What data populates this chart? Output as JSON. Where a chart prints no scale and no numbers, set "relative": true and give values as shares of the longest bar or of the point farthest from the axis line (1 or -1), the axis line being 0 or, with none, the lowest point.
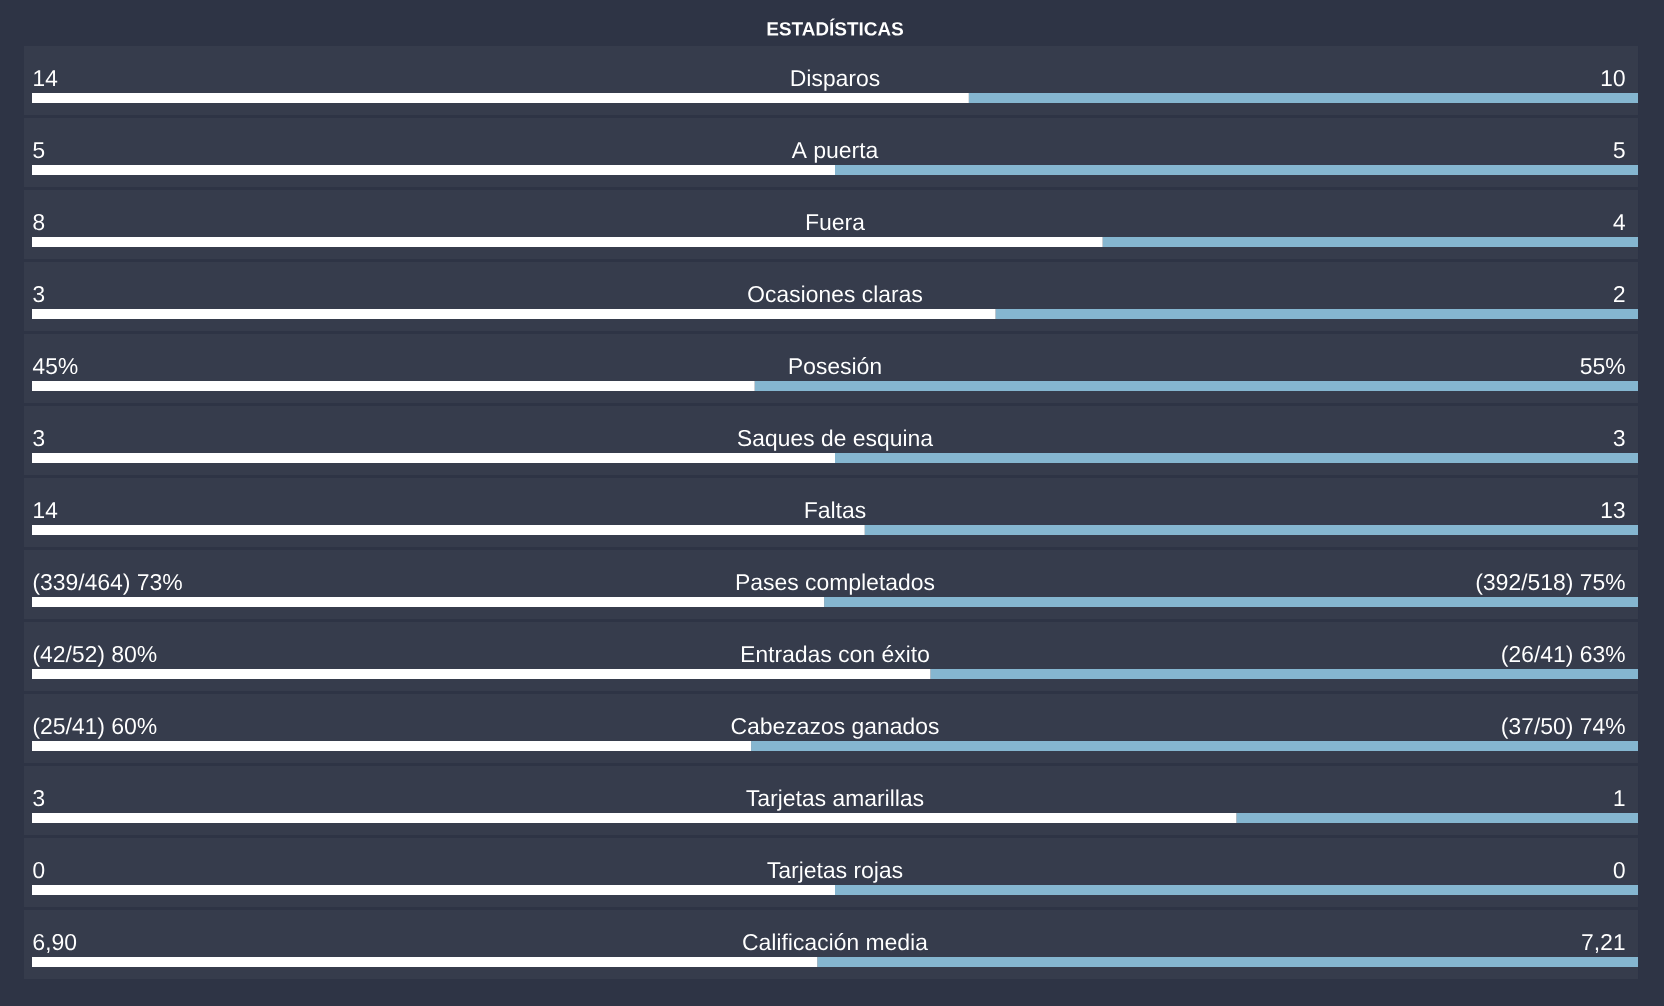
{
  "chart_data": [
    {
      "type": "bar",
      "orientation": "horizontal",
      "stacked": true,
      "title": "ESTADÍSTICAS",
      "categories": [
        "Disparos"
      ],
      "series": [
        {
          "color": "#ffffff",
          "values": [
            14
          ],
          "value_labels": [
            "14"
          ]
        },
        {
          "color": "#85b6d0",
          "values": [
            10
          ],
          "value_labels": [
            "10"
          ]
        }
      ]
    },
    {
      "type": "bar",
      "orientation": "horizontal",
      "stacked": true,
      "categories": [
        "A puerta"
      ],
      "series": [
        {
          "color": "#ffffff",
          "values": [
            5
          ],
          "value_labels": [
            "5"
          ]
        },
        {
          "color": "#85b6d0",
          "values": [
            5
          ],
          "value_labels": [
            "5"
          ]
        }
      ]
    },
    {
      "type": "bar",
      "orientation": "horizontal",
      "stacked": true,
      "categories": [
        "Fuera"
      ],
      "series": [
        {
          "color": "#ffffff",
          "values": [
            8
          ],
          "value_labels": [
            "8"
          ]
        },
        {
          "color": "#85b6d0",
          "values": [
            4
          ],
          "value_labels": [
            "4"
          ]
        }
      ]
    },
    {
      "type": "bar",
      "orientation": "horizontal",
      "stacked": true,
      "categories": [
        "Ocasiones claras"
      ],
      "series": [
        {
          "color": "#ffffff",
          "values": [
            3
          ],
          "value_labels": [
            "3"
          ]
        },
        {
          "color": "#85b6d0",
          "values": [
            2
          ],
          "value_labels": [
            "2"
          ]
        }
      ]
    },
    {
      "type": "bar",
      "orientation": "horizontal",
      "stacked": true,
      "categories": [
        "Posesión"
      ],
      "series": [
        {
          "color": "#ffffff",
          "values": [
            45
          ],
          "value_labels": [
            "45%"
          ]
        },
        {
          "color": "#85b6d0",
          "values": [
            55
          ],
          "value_labels": [
            "55%"
          ]
        }
      ]
    },
    {
      "type": "bar",
      "orientation": "horizontal",
      "stacked": true,
      "categories": [
        "Saques de esquina"
      ],
      "series": [
        {
          "color": "#ffffff",
          "values": [
            3
          ],
          "value_labels": [
            "3"
          ]
        },
        {
          "color": "#85b6d0",
          "values": [
            3
          ],
          "value_labels": [
            "3"
          ]
        }
      ]
    },
    {
      "type": "bar",
      "orientation": "horizontal",
      "stacked": true,
      "categories": [
        "Faltas"
      ],
      "series": [
        {
          "color": "#ffffff",
          "values": [
            14
          ],
          "value_labels": [
            "14"
          ]
        },
        {
          "color": "#85b6d0",
          "values": [
            13
          ],
          "value_labels": [
            "13"
          ]
        }
      ]
    },
    {
      "type": "bar",
      "orientation": "horizontal",
      "stacked": true,
      "categories": [
        "Pases completados"
      ],
      "series": [
        {
          "color": "#ffffff",
          "values": [
            73
          ],
          "value_labels": [
            "(339/464) 73%"
          ]
        },
        {
          "color": "#85b6d0",
          "values": [
            75
          ],
          "value_labels": [
            "(392/518) 75%"
          ]
        }
      ]
    },
    {
      "type": "bar",
      "orientation": "horizontal",
      "stacked": true,
      "categories": [
        "Entradas con éxito"
      ],
      "series": [
        {
          "color": "#ffffff",
          "values": [
            80
          ],
          "value_labels": [
            "(42/52) 80%"
          ]
        },
        {
          "color": "#85b6d0",
          "values": [
            63
          ],
          "value_labels": [
            "(26/41) 63%"
          ]
        }
      ]
    },
    {
      "type": "bar",
      "orientation": "horizontal",
      "stacked": true,
      "categories": [
        "Cabezazos ganados"
      ],
      "series": [
        {
          "color": "#ffffff",
          "values": [
            60
          ],
          "value_labels": [
            "(25/41) 60%"
          ]
        },
        {
          "color": "#85b6d0",
          "values": [
            74
          ],
          "value_labels": [
            "(37/50) 74%"
          ]
        }
      ]
    },
    {
      "type": "bar",
      "orientation": "horizontal",
      "stacked": true,
      "categories": [
        "Tarjetas amarillas"
      ],
      "series": [
        {
          "color": "#ffffff",
          "values": [
            3
          ],
          "value_labels": [
            "3"
          ]
        },
        {
          "color": "#85b6d0",
          "values": [
            1
          ],
          "value_labels": [
            "1"
          ]
        }
      ]
    },
    {
      "type": "bar",
      "orientation": "horizontal",
      "stacked": true,
      "relative": true,
      "categories": [
        "Tarjetas rojas"
      ],
      "annotations": [
        "0",
        "0"
      ],
      "series": [
        {
          "color": "#ffffff",
          "values": [
            0.5
          ]
        },
        {
          "color": "#85b6d0",
          "values": [
            0.5
          ]
        }
      ]
    },
    {
      "type": "bar",
      "orientation": "horizontal",
      "stacked": true,
      "categories": [
        "Calificación media"
      ],
      "series": [
        {
          "color": "#ffffff",
          "values": [
            6.9
          ],
          "value_labels": [
            "6,90"
          ]
        },
        {
          "color": "#85b6d0",
          "values": [
            7.21
          ],
          "value_labels": [
            "7,21"
          ]
        }
      ]
    }
  ]
}
